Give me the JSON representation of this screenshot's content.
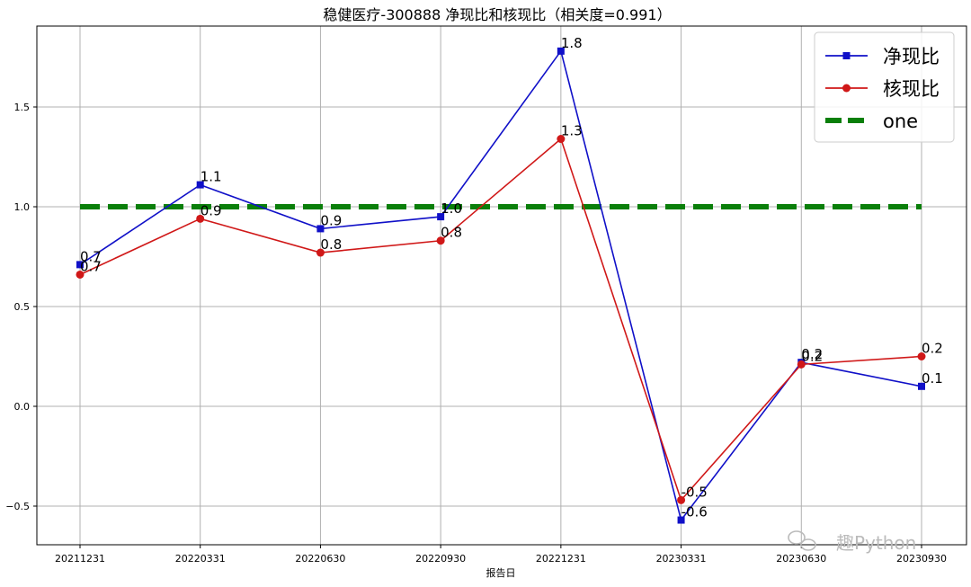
{
  "chart_data": {
    "type": "line",
    "title": "稳健医疗-300888 净现比和核现比（相关度=0.991）",
    "xlabel": "报告日",
    "ylabel": "",
    "categories": [
      "20211231",
      "20220331",
      "20220630",
      "20220930",
      "20221231",
      "20230331",
      "20230630",
      "20230930"
    ],
    "ylim": [
      -0.7,
      1.9
    ],
    "yticks": [
      -0.5,
      0.0,
      0.5,
      1.0,
      1.5
    ],
    "ytick_labels": [
      "−0.5",
      "0.0",
      "0.5",
      "1.0",
      "1.5"
    ],
    "grid": true,
    "legend": "upper right",
    "series": [
      {
        "name": "净现比",
        "color": "#1010c8",
        "marker": "square",
        "values": [
          0.71,
          1.11,
          0.89,
          0.95,
          1.78,
          -0.57,
          0.22,
          0.1
        ],
        "labels": [
          "0.7",
          "1.1",
          "0.9",
          "1.0",
          "1.8",
          "-0.6",
          "0.2",
          "0.1"
        ]
      },
      {
        "name": "核现比",
        "color": "#d01818",
        "marker": "circle",
        "values": [
          0.66,
          0.94,
          0.77,
          0.83,
          1.34,
          -0.47,
          0.21,
          0.25
        ],
        "labels": [
          "0.7",
          "0.9",
          "0.8",
          "0.8",
          "1.3",
          "-0.5",
          "0.2",
          "0.2"
        ]
      },
      {
        "name": "one",
        "color": "#0a7f0a",
        "style": "dashed",
        "values": [
          1,
          1,
          1,
          1,
          1,
          1,
          1,
          1
        ]
      }
    ]
  },
  "watermark": "趣Python"
}
